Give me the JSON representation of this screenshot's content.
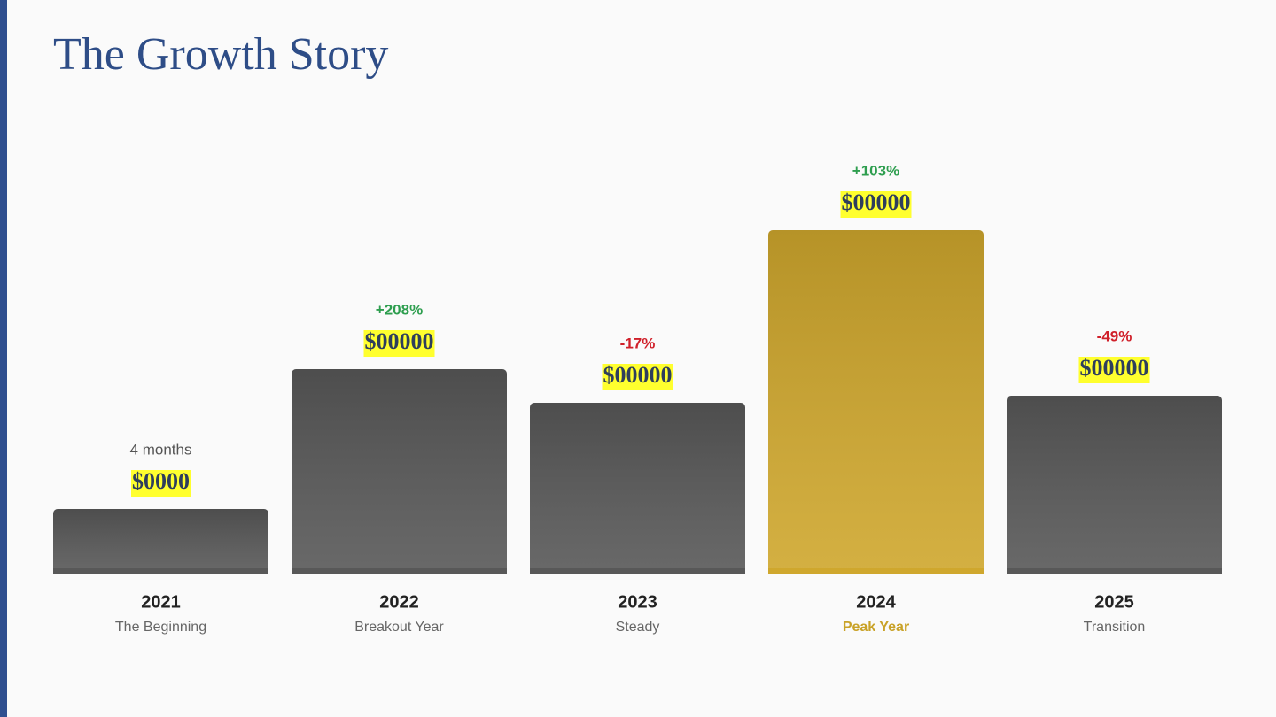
{
  "chart_data": {
    "type": "bar",
    "title": "The Growth Story",
    "categories": [
      "2021",
      "2022",
      "2023",
      "2024",
      "2025"
    ],
    "subtitles": [
      "The Beginning",
      "Breakout Year",
      "Steady",
      "Peak Year",
      "Transition"
    ],
    "values": [
      73,
      231,
      193,
      388,
      201
    ],
    "amounts": [
      "$0000",
      "$00000",
      "$00000",
      "$00000",
      "$00000"
    ],
    "annotations": [
      {
        "text": "4 months",
        "color": "#555555"
      },
      {
        "text": "+208%",
        "color": "#2e9e4f"
      },
      {
        "text": "-17%",
        "color": "#d0202a"
      },
      {
        "text": "+103%",
        "color": "#2e9e4f"
      },
      {
        "text": "-49%",
        "color": "#d0202a"
      }
    ],
    "colors": [
      "#585858",
      "#585858",
      "#585858",
      "#cfa72d",
      "#585858"
    ],
    "subtitle_colors": [
      "#666666",
      "#666666",
      "#666666",
      "#c9a227",
      "#666666"
    ],
    "ylim": [
      0,
      400
    ]
  }
}
